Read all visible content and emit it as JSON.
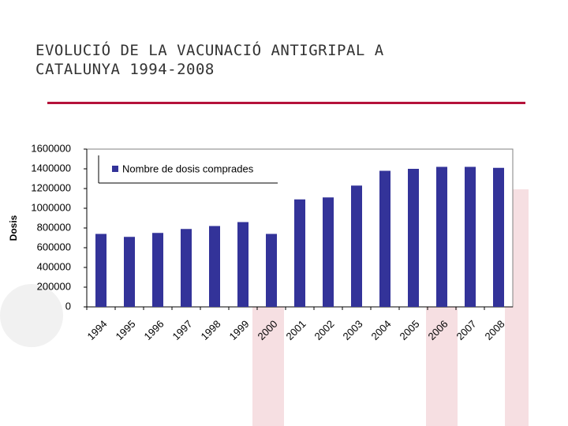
{
  "chart_data": {
    "type": "bar",
    "title": "EVOLUCIÓ DE LA VACUNACIÓ ANTIGRIPAL A CATALUNYA 1994-2008",
    "y_label": "Dosis",
    "categories": [
      "1994",
      "1995",
      "1996",
      "1997",
      "1998",
      "1999",
      "2000",
      "2001",
      "2002",
      "2003",
      "2004",
      "2005",
      "2006",
      "2007",
      "2008"
    ],
    "series": [
      {
        "name": "Nombre de dosis comprades",
        "color": "#333399",
        "values": [
          740000,
          710000,
          750000,
          790000,
          820000,
          860000,
          740000,
          1090000,
          1110000,
          1230000,
          1380000,
          1400000,
          1420000,
          1420000,
          1410000
        ]
      }
    ],
    "ylim": [
      0,
      1600000
    ],
    "yticks": [
      0,
      200000,
      400000,
      600000,
      800000,
      1000000,
      1200000,
      1400000,
      1600000
    ],
    "legend": "top-left"
  }
}
